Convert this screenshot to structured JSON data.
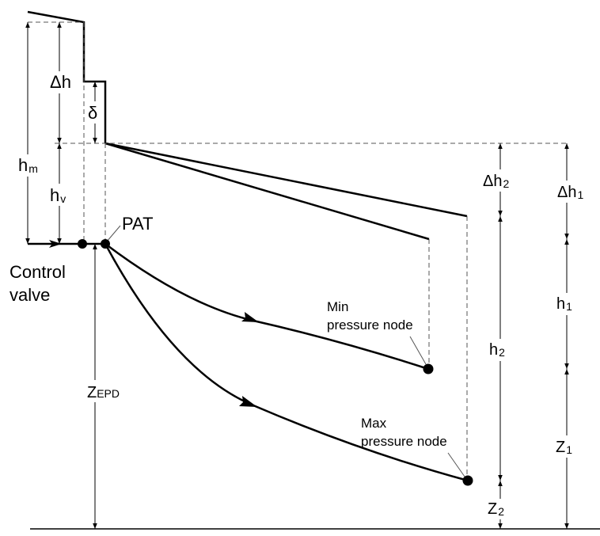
{
  "labels": {
    "delta_h": "Δh",
    "delta": "δ",
    "h_m": {
      "base": "h",
      "sub": "m"
    },
    "h_v": {
      "base": "h",
      "sub": "v"
    },
    "pat": "PAT",
    "control_valve": [
      "Control",
      "valve"
    ],
    "delta_h2": {
      "base": "Δh",
      "sub": "2"
    },
    "delta_h1": {
      "base": "Δh",
      "sub": "1"
    },
    "h1": {
      "base": "h",
      "sub": "1"
    },
    "h2": {
      "base": "h",
      "sub": "2"
    },
    "z1": {
      "base": "Z",
      "sub": "1"
    },
    "z2": {
      "base": "Z",
      "sub": "2"
    },
    "z_epd": {
      "base": "Z",
      "sub": "EPD"
    },
    "min_node": [
      "Min",
      "pressure node"
    ],
    "max_node": [
      "Max",
      "pressure node"
    ]
  }
}
